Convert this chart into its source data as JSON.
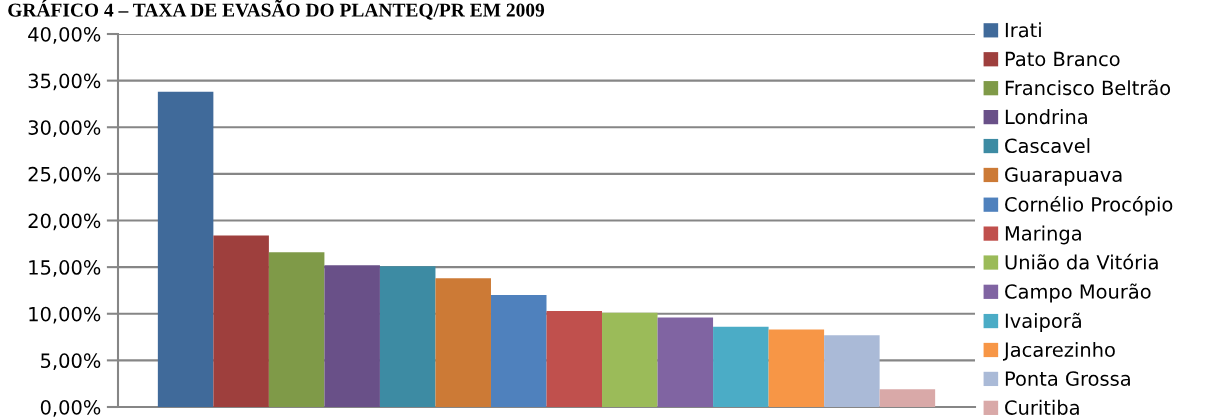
{
  "chart_data": {
    "type": "bar",
    "title": "GRÁFICO 4 – TAXA DE EVASÃO DO PLANTEQ/PR EM 2009",
    "categories": [
      null
    ],
    "series": [
      {
        "name": "Irati",
        "color": "#406a9a",
        "values": [
          33.8
        ]
      },
      {
        "name": "Pato Branco",
        "color": "#9e3f3d",
        "values": [
          18.4
        ]
      },
      {
        "name": "Francisco Beltrão",
        "color": "#7f9a48",
        "values": [
          16.6
        ]
      },
      {
        "name": "Londrina",
        "color": "#695088",
        "values": [
          15.2
        ]
      },
      {
        "name": "Cascavel",
        "color": "#3d8ba3",
        "values": [
          15.1
        ]
      },
      {
        "name": "Guarapuava",
        "color": "#cc7a36",
        "values": [
          13.8
        ]
      },
      {
        "name": "Cornélio Procópio",
        "color": "#4f81bd",
        "values": [
          12.0
        ]
      },
      {
        "name": "Maringa",
        "color": "#c0504d",
        "values": [
          10.3
        ]
      },
      {
        "name": "União da Vitória",
        "color": "#9bbb59",
        "values": [
          10.1
        ]
      },
      {
        "name": "Campo Mourão",
        "color": "#8064a2",
        "values": [
          9.6
        ]
      },
      {
        "name": "Ivaiporã",
        "color": "#4bacc6",
        "values": [
          8.6
        ]
      },
      {
        "name": "Jacarezinho",
        "color": "#f79646",
        "values": [
          8.3
        ]
      },
      {
        "name": "Ponta Grossa",
        "color": "#aabad7",
        "values": [
          7.7
        ]
      },
      {
        "name": "Curitiba",
        "color": "#d9a9a8",
        "values": [
          1.9
        ]
      }
    ],
    "ylim": [
      0,
      40
    ],
    "yticks": [
      {
        "value": 0,
        "label": "0,00%"
      },
      {
        "value": 5,
        "label": "5,00%"
      },
      {
        "value": 10,
        "label": "10,00%"
      },
      {
        "value": 15,
        "label": "15,00%"
      },
      {
        "value": 20,
        "label": "20,00%"
      },
      {
        "value": 25,
        "label": "25,00%"
      },
      {
        "value": 30,
        "label": "30,00%"
      },
      {
        "value": 35,
        "label": "35,00%"
      },
      {
        "value": 40,
        "label": "40,00%"
      }
    ],
    "grid": "y",
    "legend": "right"
  }
}
